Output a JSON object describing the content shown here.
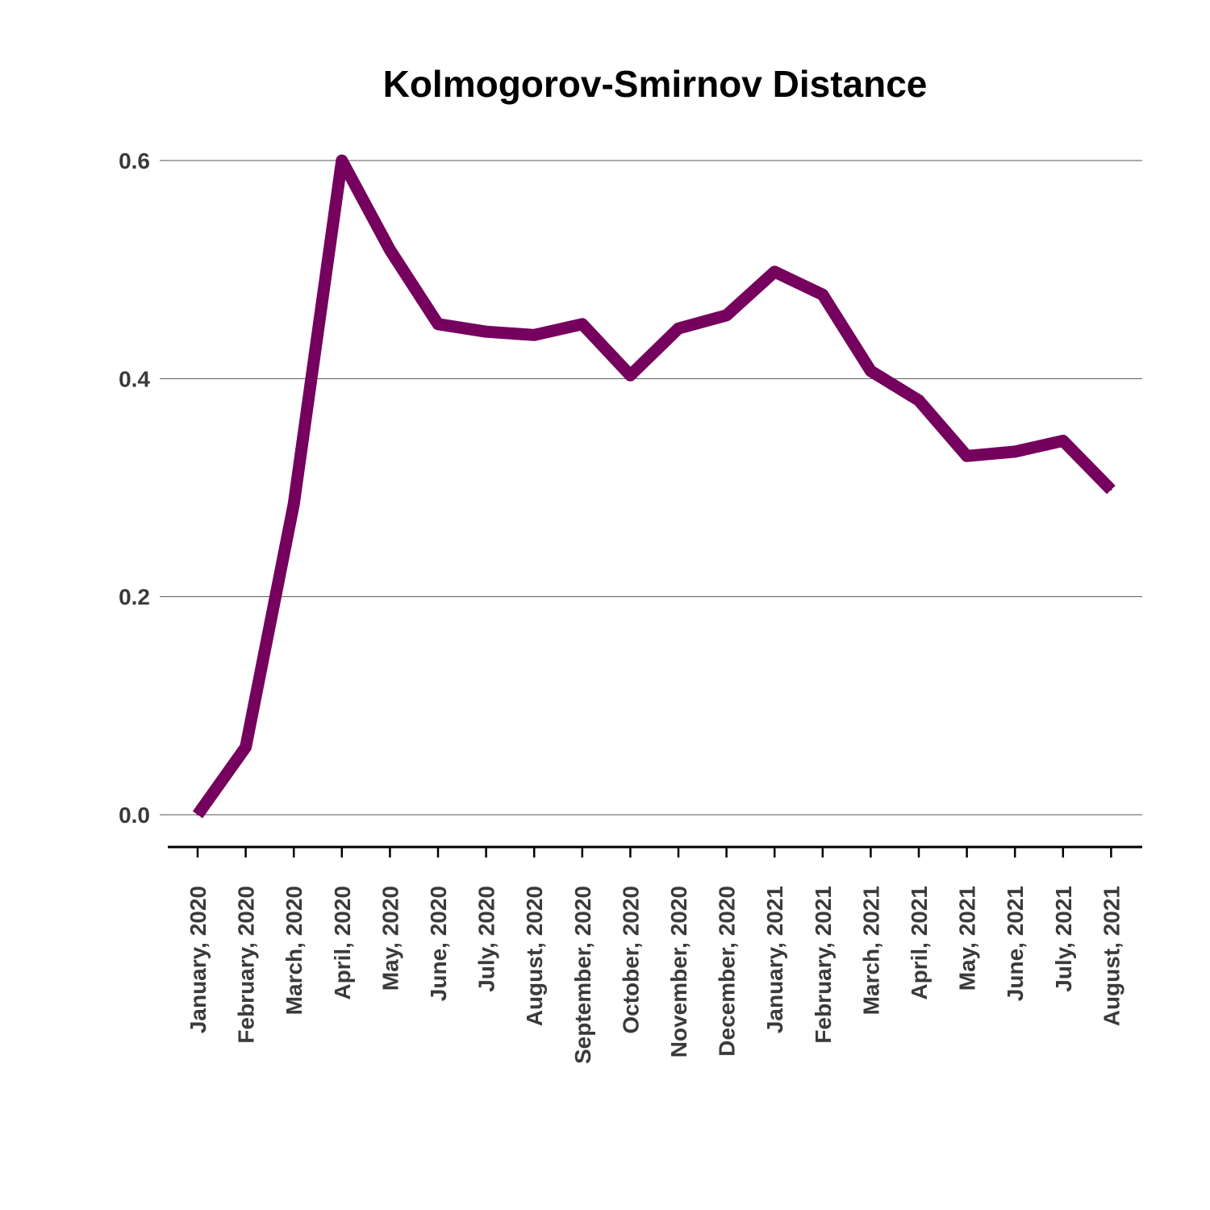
{
  "chart_data": {
    "type": "line",
    "title": "Kolmogorov-Smirnov Distance",
    "xlabel": "",
    "ylabel": "",
    "categories": [
      "January, 2020",
      "February, 2020",
      "March, 2020",
      "April, 2020",
      "May, 2020",
      "June, 2020",
      "July, 2020",
      "August, 2020",
      "September, 2020",
      "October, 2020",
      "November, 2020",
      "December, 2020",
      "January, 2021",
      "February, 2021",
      "March, 2021",
      "April, 2021",
      "May, 2021",
      "June, 2021",
      "July, 2021",
      "August, 2021"
    ],
    "series": [
      {
        "color": "#75005e",
        "values": [
          0.0,
          0.062,
          0.285,
          0.6,
          0.518,
          0.45,
          0.443,
          0.44,
          0.45,
          0.403,
          0.446,
          0.458,
          0.498,
          0.477,
          0.407,
          0.38,
          0.329,
          0.333,
          0.343,
          0.298
        ]
      }
    ],
    "ylim": [
      -0.02,
      0.6
    ],
    "yticks": [
      0.0,
      0.2,
      0.4,
      0.6
    ],
    "ytick_labels": [
      "0.0",
      "0.2",
      "0.4",
      "0.6"
    ],
    "grid": "horizontal",
    "legend": "none"
  }
}
